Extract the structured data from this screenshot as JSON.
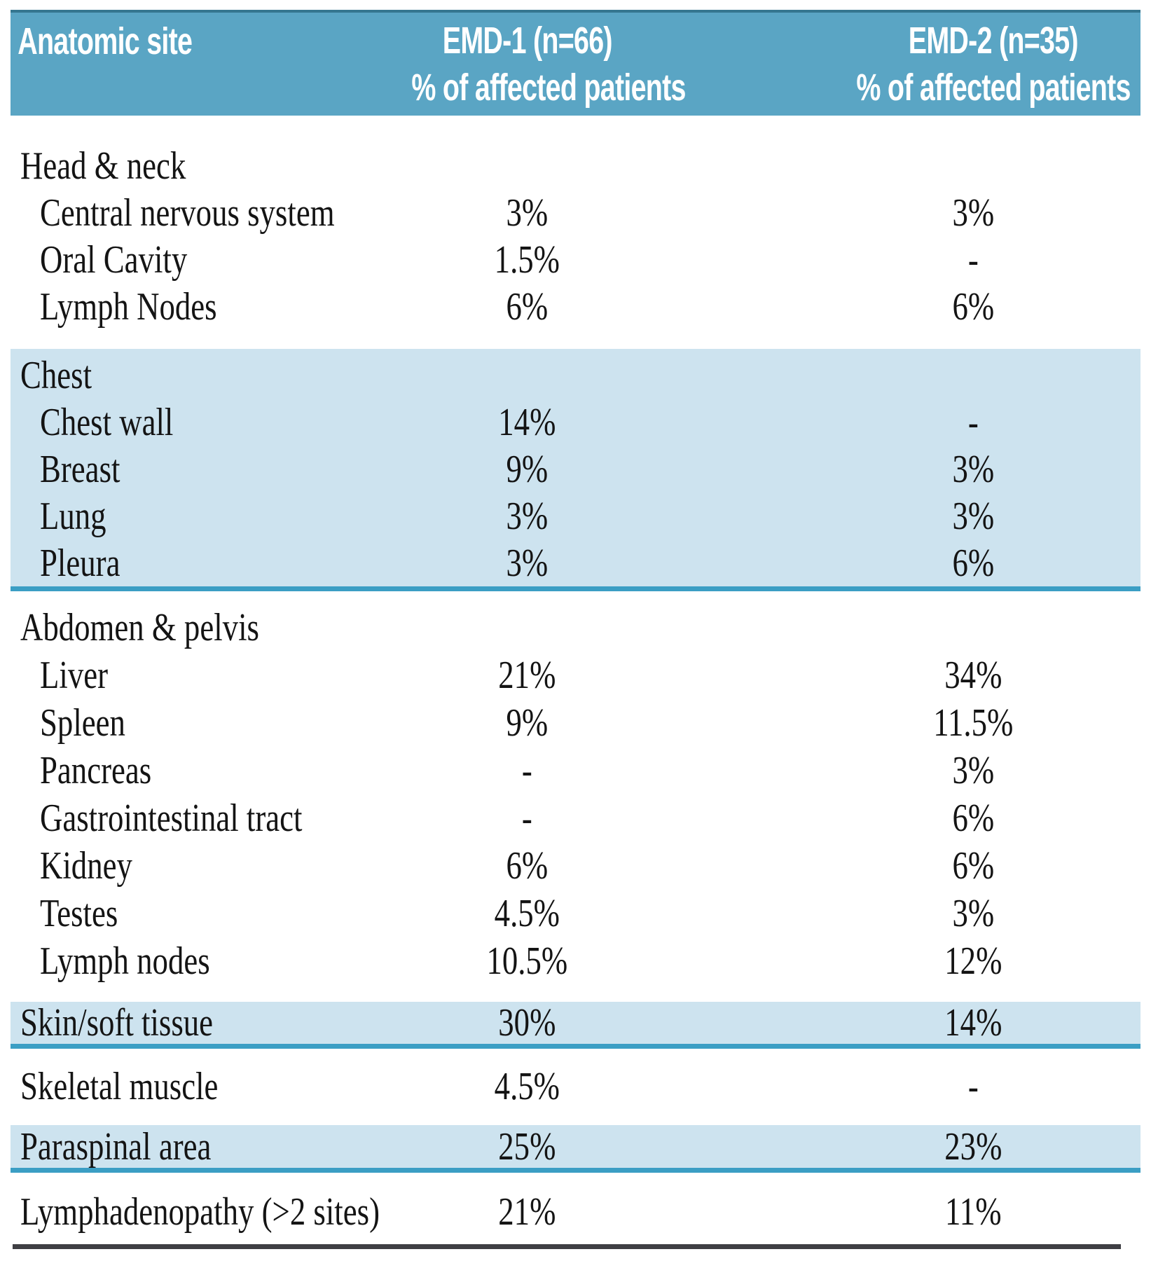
{
  "header": {
    "col1": "Anatomic site",
    "col2": {
      "line1": "EMD-1 (n=66)",
      "line2": "% of affected patients"
    },
    "col3": {
      "line1": "EMD-2 (n=35)",
      "line2": "% of affected patients"
    }
  },
  "colors": {
    "header_bg": "#5aa5c4",
    "header_top_edge": "#35768f",
    "section_band_bg": "#cde3ef",
    "section_band_line": "#3b9ec4",
    "bottom_rule": "#3f3f44",
    "text": "#141414",
    "header_text": "#ffffff"
  },
  "sections": [
    {
      "shade": "white",
      "rows": [
        {
          "label": "Head & neck",
          "indent": false,
          "emd1": "",
          "emd2": ""
        },
        {
          "label": "Central nervous system",
          "indent": true,
          "emd1": "3%",
          "emd2": "3%"
        },
        {
          "label": "Oral Cavity",
          "indent": true,
          "emd1": "1.5%",
          "emd2": "-"
        },
        {
          "label": "Lymph Nodes",
          "indent": true,
          "emd1": "6%",
          "emd2": "6%"
        }
      ]
    },
    {
      "shade": "blue",
      "rows": [
        {
          "label": "Chest",
          "indent": false,
          "emd1": "",
          "emd2": ""
        },
        {
          "label": "Chest wall",
          "indent": true,
          "emd1": "14%",
          "emd2": "-"
        },
        {
          "label": "Breast",
          "indent": true,
          "emd1": "9%",
          "emd2": "3%"
        },
        {
          "label": "Lung",
          "indent": true,
          "emd1": "3%",
          "emd2": "3%"
        },
        {
          "label": "Pleura",
          "indent": true,
          "emd1": "3%",
          "emd2": "6%"
        }
      ]
    },
    {
      "shade": "white",
      "rows": [
        {
          "label": "Abdomen & pelvis",
          "indent": false,
          "emd1": "",
          "emd2": ""
        },
        {
          "label": "Liver",
          "indent": true,
          "emd1": "21%",
          "emd2": "34%"
        },
        {
          "label": "Spleen",
          "indent": true,
          "emd1": "9%",
          "emd2": "11.5%"
        },
        {
          "label": "Pancreas",
          "indent": true,
          "emd1": "-",
          "emd2": "3%"
        },
        {
          "label": "Gastrointestinal tract",
          "indent": true,
          "emd1": "-",
          "emd2": "6%"
        },
        {
          "label": "Kidney",
          "indent": true,
          "emd1": "6%",
          "emd2": "6%"
        },
        {
          "label": "Testes",
          "indent": true,
          "emd1": "4.5%",
          "emd2": "3%"
        },
        {
          "label": "Lymph nodes",
          "indent": true,
          "emd1": "10.5%",
          "emd2": "12%"
        }
      ]
    },
    {
      "shade": "blue",
      "rows": [
        {
          "label": "Skin/soft tissue",
          "indent": false,
          "emd1": "30%",
          "emd2": "14%"
        }
      ]
    },
    {
      "shade": "white",
      "rows": [
        {
          "label": "Skeletal muscle",
          "indent": false,
          "emd1": "4.5%",
          "emd2": "-"
        }
      ]
    },
    {
      "shade": "blue",
      "rows": [
        {
          "label": "Paraspinal area",
          "indent": false,
          "emd1": "25%",
          "emd2": "23%"
        }
      ]
    },
    {
      "shade": "white",
      "rows": [
        {
          "label": "Lymphadenopathy (>2 sites)",
          "indent": false,
          "emd1": "21%",
          "emd2": "11%"
        }
      ]
    }
  ]
}
